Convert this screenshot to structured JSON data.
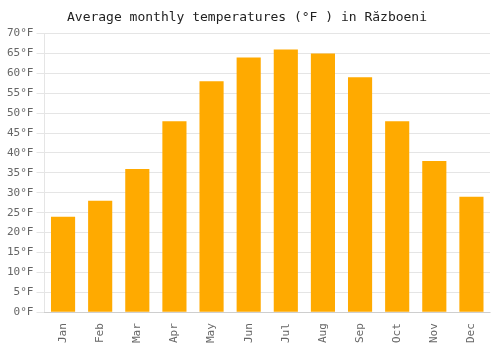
{
  "chart_data": {
    "type": "bar",
    "title": "Average monthly temperatures (°F ) in Războeni",
    "categories": [
      "Jan",
      "Feb",
      "Mar",
      "Apr",
      "May",
      "Jun",
      "Jul",
      "Aug",
      "Sep",
      "Oct",
      "Nov",
      "Dec"
    ],
    "values": [
      24,
      28,
      36,
      48,
      58,
      64,
      66,
      65,
      59,
      48,
      38,
      29
    ],
    "color": "#FFAA00",
    "ylim": [
      0,
      70
    ],
    "yticks": [
      {
        "value": 0,
        "label": "0°F"
      },
      {
        "value": 5,
        "label": "5°F"
      },
      {
        "value": 10,
        "label": "10°F"
      },
      {
        "value": 15,
        "label": "15°F"
      },
      {
        "value": 20,
        "label": "20°F"
      },
      {
        "value": 25,
        "label": "25°F"
      },
      {
        "value": 30,
        "label": "30°F"
      },
      {
        "value": 35,
        "label": "35°F"
      },
      {
        "value": 40,
        "label": "40°F"
      },
      {
        "value": 45,
        "label": "45°F"
      },
      {
        "value": 50,
        "label": "50°F"
      },
      {
        "value": 55,
        "label": "55°F"
      },
      {
        "value": 60,
        "label": "60°F"
      },
      {
        "value": 65,
        "label": "65°F"
      },
      {
        "value": 70,
        "label": "70°F"
      }
    ],
    "grid": "y"
  }
}
